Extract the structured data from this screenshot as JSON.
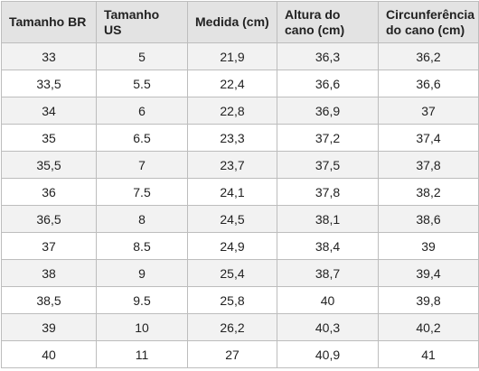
{
  "table": {
    "header": [
      "Tamanho BR",
      "Tamanho US",
      "Medida (cm)",
      "Altura do\ncano (cm)",
      "Circunferência\ndo cano (cm)"
    ],
    "rows": [
      [
        "33",
        "5",
        "21,9",
        "36,3",
        "36,2"
      ],
      [
        "33,5",
        "5.5",
        "22,4",
        "36,6",
        "36,6"
      ],
      [
        "34",
        "6",
        "22,8",
        "36,9",
        "37"
      ],
      [
        "35",
        "6.5",
        "23,3",
        "37,2",
        "37,4"
      ],
      [
        "35,5",
        "7",
        "23,7",
        "37,5",
        "37,8"
      ],
      [
        "36",
        "7.5",
        "24,1",
        "37,8",
        "38,2"
      ],
      [
        "36,5",
        "8",
        "24,5",
        "38,1",
        "38,6"
      ],
      [
        "37",
        "8.5",
        "24,9",
        "38,4",
        "39"
      ],
      [
        "38",
        "9",
        "25,4",
        "38,7",
        "39,4"
      ],
      [
        "38,5",
        "9.5",
        "25,8",
        "40",
        "39,8"
      ],
      [
        "39",
        "10",
        "26,2",
        "40,3",
        "40,2"
      ],
      [
        "40",
        "11",
        "27",
        "40,9",
        "41"
      ]
    ]
  }
}
